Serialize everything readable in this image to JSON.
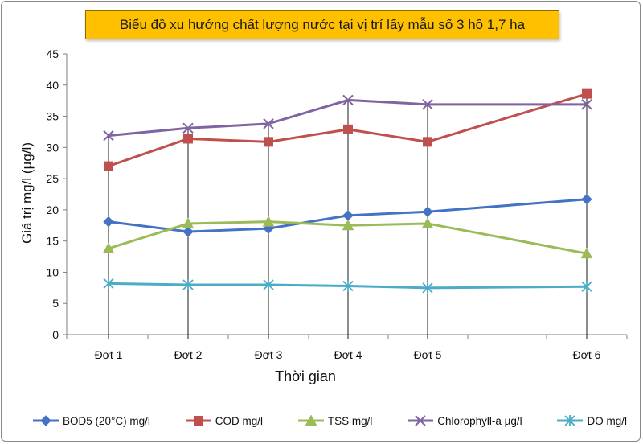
{
  "chart_data": {
    "type": "line",
    "title": "Biểu đồ xu hướng chất lượng nước tại vị trí lấy mẫu số 3 hồ 1,7 ha",
    "xlabel": "Thời gian",
    "ylabel": "Giá trị mg/l (µg/l)",
    "categories": [
      "Đợt 1",
      "Đợt 2",
      "Đợt 3",
      "Đợt 4",
      "Đợt 5",
      "Đợt 6"
    ],
    "ylim": [
      0,
      45
    ],
    "yticks": [
      "0",
      "5",
      "10",
      "15",
      "20",
      "25",
      "30",
      "35",
      "40",
      "45"
    ],
    "grid": "vertical drop lines at each category",
    "legend_position": "bottom",
    "series": [
      {
        "name": "BOD5 (20°C) mg/l",
        "color": "#4472c4",
        "marker": "diamond",
        "values": [
          18.1,
          16.5,
          17.0,
          19.1,
          19.7,
          21.7
        ]
      },
      {
        "name": "COD mg/l",
        "color": "#c0504d",
        "marker": "square",
        "values": [
          27.0,
          31.4,
          30.9,
          32.9,
          30.9,
          38.6
        ]
      },
      {
        "name": "TSS mg/l",
        "color": "#9bbb59",
        "marker": "triangle",
        "values": [
          13.8,
          17.8,
          18.1,
          17.5,
          17.8,
          13.0
        ]
      },
      {
        "name": "Chlorophyll-a µg/l",
        "color": "#8064a2",
        "marker": "x",
        "values": [
          31.9,
          33.1,
          33.8,
          37.6,
          36.9,
          36.9
        ]
      },
      {
        "name": "DO mg/l",
        "color": "#4bacc6",
        "marker": "star",
        "values": [
          8.2,
          8.0,
          8.0,
          7.8,
          7.5,
          7.7
        ]
      }
    ]
  }
}
